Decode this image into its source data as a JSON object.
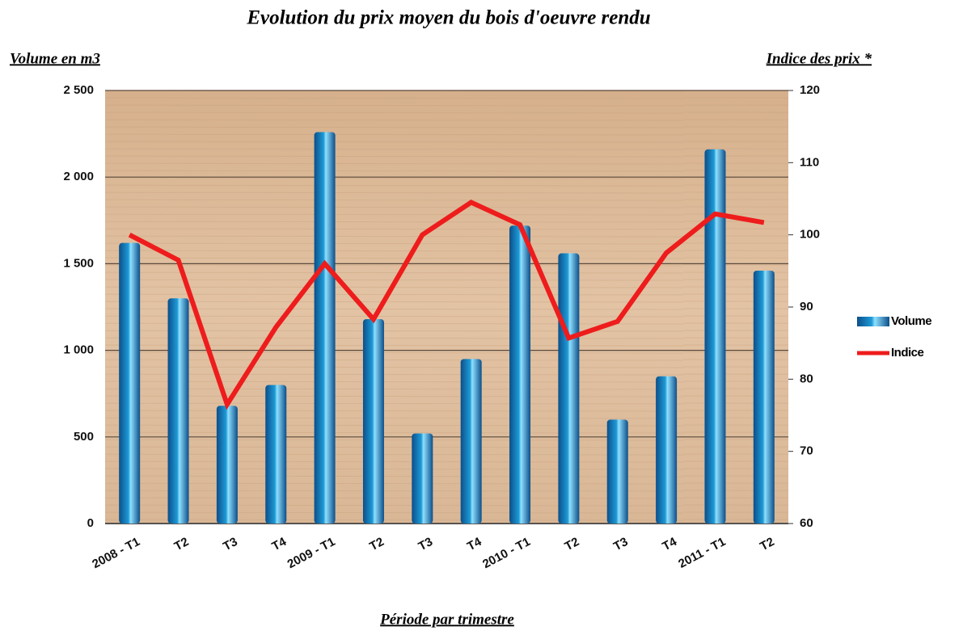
{
  "chart_data": {
    "type": "bar-line",
    "title": "Evolution du prix moyen du bois d'oeuvre rendu",
    "y_label": "Volume en m3",
    "y2_label": "Indice des prix *",
    "x_label": "Période par trimestre",
    "categories": [
      "2008 - T1",
      "T2",
      "T3",
      "T4",
      "2009 - T1",
      "T2",
      "T3",
      "T4",
      "2010 - T1",
      "T2",
      "T3",
      "T4",
      "2011 - T1",
      "T2"
    ],
    "series": [
      {
        "name": "Volume",
        "type": "bar",
        "color": "#1e9ad6",
        "values": [
          1620,
          1300,
          680,
          800,
          2260,
          1180,
          520,
          950,
          1720,
          1560,
          600,
          850,
          2160,
          1460
        ]
      },
      {
        "name": "Indice",
        "type": "line",
        "axis": "y2",
        "color": "#ee1c1c",
        "values": [
          100,
          96.5,
          76.5,
          87.2,
          96,
          88.3,
          100,
          104.5,
          101.4,
          85.7,
          88,
          97.5,
          102.9,
          101.7
        ]
      }
    ],
    "ylim": [
      0,
      2500
    ],
    "yticks": [
      0,
      500,
      {
        "value": 1000,
        "label": "1 000"
      },
      {
        "value": 1500,
        "label": "1 500"
      },
      {
        "value": 2000,
        "label": "2 000"
      },
      {
        "value": 2500,
        "label": "2 500"
      }
    ],
    "y2lim": [
      60,
      120
    ],
    "y2ticks": [
      60,
      70,
      80,
      90,
      100,
      110,
      120
    ],
    "grid": true,
    "legend": "right"
  }
}
